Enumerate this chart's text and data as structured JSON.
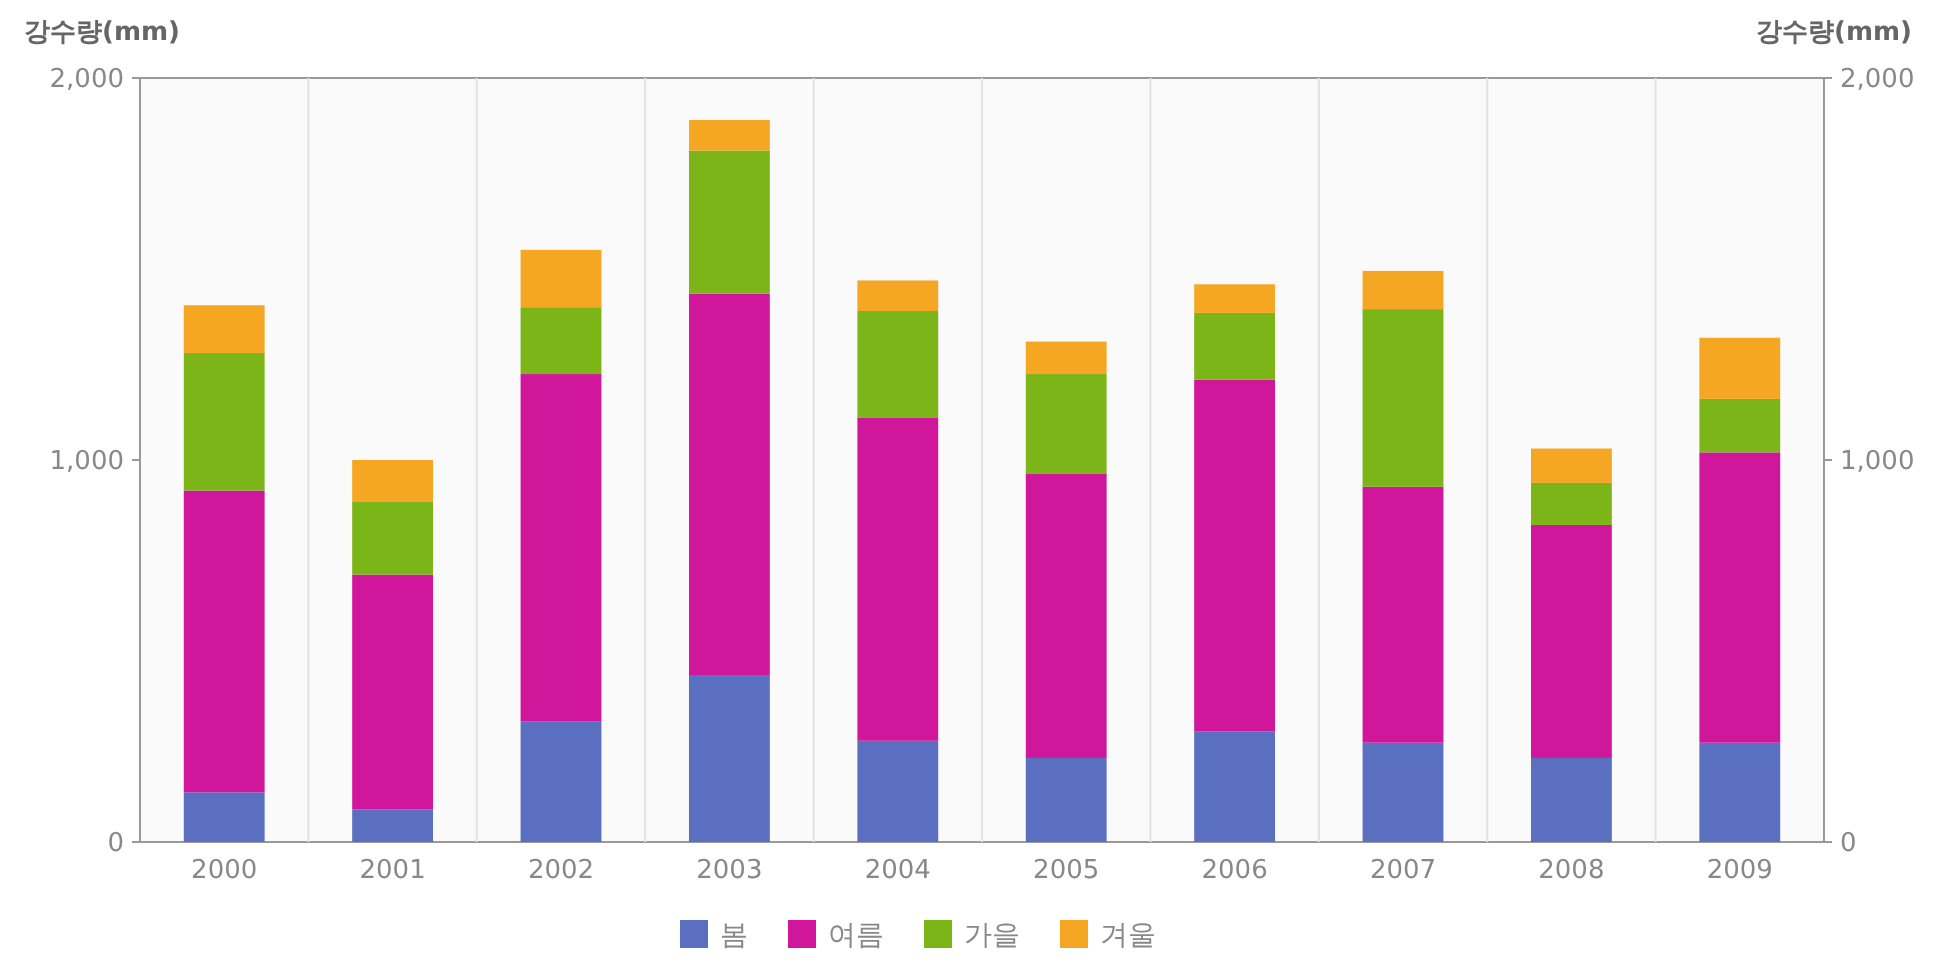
{
  "chart_data": {
    "type": "bar",
    "stacked": true,
    "ylabel": "강수량(mm)",
    "y2label": "강수량(mm)",
    "categories": [
      "2000",
      "2001",
      "2002",
      "2003",
      "2004",
      "2005",
      "2006",
      "2007",
      "2008",
      "2009"
    ],
    "series": [
      {
        "name": "봄",
        "color": "#5b6fc0",
        "values": [
          130,
          85,
          315,
          435,
          265,
          220,
          290,
          260,
          220,
          260
        ]
      },
      {
        "name": "여름",
        "color": "#d0169a",
        "values": [
          790,
          615,
          910,
          1000,
          845,
          745,
          920,
          670,
          610,
          760
        ]
      },
      {
        "name": "가을",
        "color": "#7cb518",
        "values": [
          360,
          190,
          175,
          375,
          280,
          260,
          175,
          465,
          110,
          140
        ]
      },
      {
        "name": "겨울",
        "color": "#f5a623",
        "values": [
          125,
          110,
          150,
          80,
          80,
          85,
          75,
          100,
          90,
          160
        ]
      }
    ],
    "ylim": [
      0,
      2000
    ],
    "yticks": [
      {
        "value": 0,
        "label": "0"
      },
      {
        "value": 1000,
        "label": "1,000"
      },
      {
        "value": 2000,
        "label": "2,000"
      }
    ],
    "y2lim": [
      0,
      2000
    ],
    "y2ticks": [
      {
        "value": 0,
        "label": "0"
      },
      {
        "value": 1000,
        "label": "1,000"
      },
      {
        "value": 2000,
        "label": "2,000"
      }
    ],
    "grid": "x",
    "legend": "bottom"
  }
}
